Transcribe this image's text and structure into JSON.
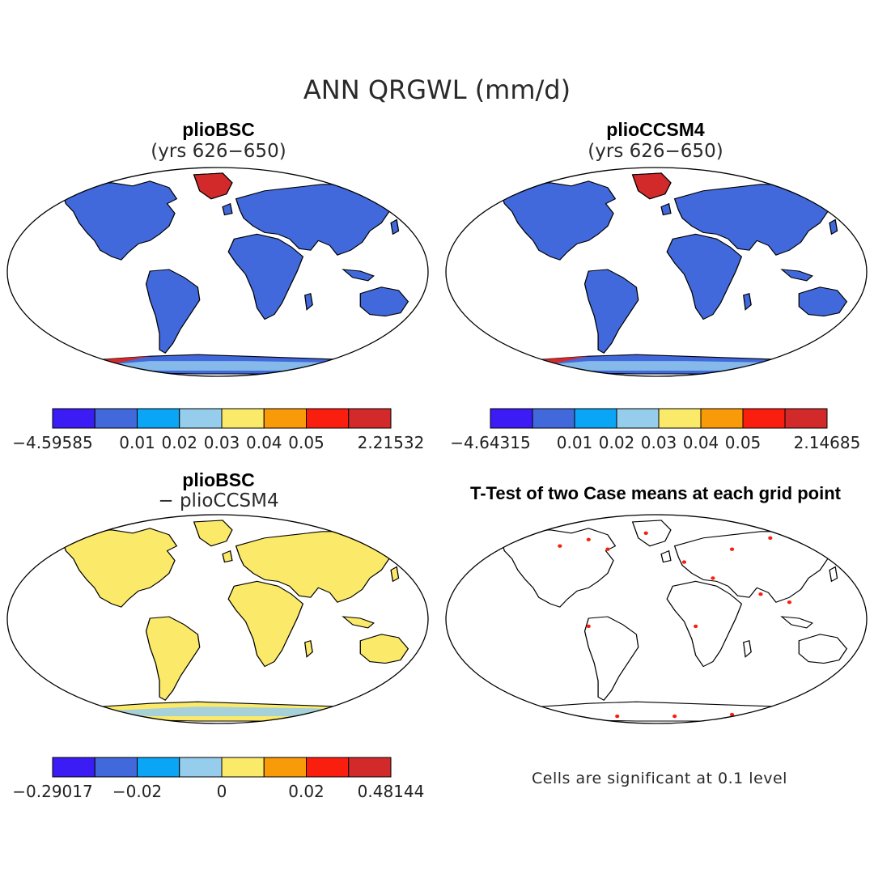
{
  "title": "ANN QRGWL (mm/d)",
  "panels": [
    {
      "id": "p1",
      "title": "plioBSC",
      "subtitle": "(yrs 626−650)",
      "fill": "base"
    },
    {
      "id": "p2",
      "title": "plioCCSM4",
      "subtitle": "(yrs 626−650)",
      "fill": "base"
    },
    {
      "id": "p3",
      "title": "plioBSC",
      "subtitle": "− plioCCSM4",
      "fill": "diff"
    },
    {
      "id": "p4",
      "title": "T-Test of two Case means at each grid point",
      "fill": "ttest"
    }
  ],
  "colorbars": [
    {
      "colors": [
        "#3c1cf4",
        "#4169dc",
        "#0aa5f5",
        "#96cdec",
        "#fbe96a",
        "#f99a09",
        "#fa1e0e",
        "#d22a2a"
      ],
      "ticks": [
        "−4.59585",
        "0.01",
        "0.02",
        "0.03",
        "0.04",
        "0.05",
        "2.21532"
      ]
    },
    {
      "colors": [
        "#3c1cf4",
        "#4169dc",
        "#0aa5f5",
        "#96cdec",
        "#fbe96a",
        "#f99a09",
        "#fa1e0e",
        "#d22a2a"
      ],
      "ticks": [
        "−4.64315",
        "0.01",
        "0.02",
        "0.03",
        "0.04",
        "0.05",
        "2.14685"
      ]
    },
    {
      "colors": [
        "#3c1cf4",
        "#4169dc",
        "#0aa5f5",
        "#96cdec",
        "#fbe96a",
        "#f99a09",
        "#fa1e0e",
        "#d22a2a"
      ],
      "ticks": [
        "−0.29017",
        "−0.02",
        "0",
        "0.02",
        "0.48144"
      ]
    }
  ],
  "note": "Cells are significant at 0.1 level",
  "fills": {
    "base": "#4169dc",
    "diff": "#fbe96a",
    "ttest": "none"
  },
  "highlight": {
    "antarctic_base": "#96cdec",
    "hot": "#d22a2a",
    "sig": "#fa1e0e"
  }
}
